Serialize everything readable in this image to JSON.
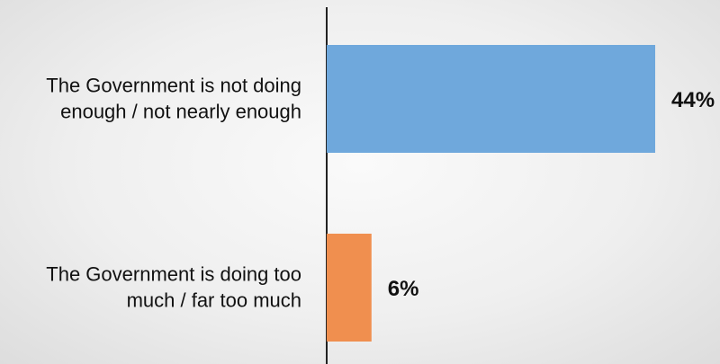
{
  "chart_data": {
    "type": "bar",
    "orientation": "horizontal",
    "categories": [
      [
        "The Government is not doing",
        "enough / not nearly enough"
      ],
      [
        "The Government is doing too",
        "much / far too much"
      ]
    ],
    "values": [
      44,
      6
    ],
    "value_labels": [
      "44%",
      "6%"
    ],
    "colors": [
      "#6fa8dc",
      "#f08f4f"
    ],
    "title": "",
    "xlabel": "",
    "ylabel": "",
    "xlim": [
      0,
      50
    ],
    "grid": false,
    "legend": "none"
  }
}
